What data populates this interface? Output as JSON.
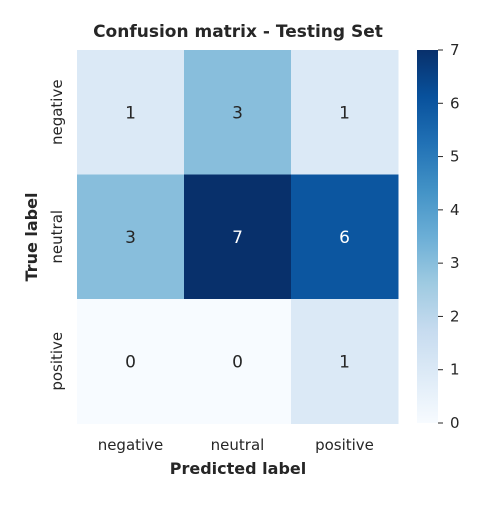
{
  "chart_data": {
    "type": "heatmap",
    "title": "Confusion matrix - Testing Set",
    "xlabel": "Predicted label",
    "ylabel": "True label",
    "x_categories": [
      "negative",
      "neutral",
      "positive"
    ],
    "y_categories": [
      "negative",
      "neutral",
      "positive"
    ],
    "values": [
      [
        1,
        3,
        1
      ],
      [
        3,
        7,
        6
      ],
      [
        0,
        0,
        1
      ]
    ],
    "colormap": "Blues",
    "colorbar": {
      "range": [
        0,
        7
      ],
      "ticks": [
        "0",
        "1",
        "2",
        "3",
        "4",
        "5",
        "6",
        "7"
      ]
    },
    "grid": false,
    "legend": "colorbar-right"
  }
}
